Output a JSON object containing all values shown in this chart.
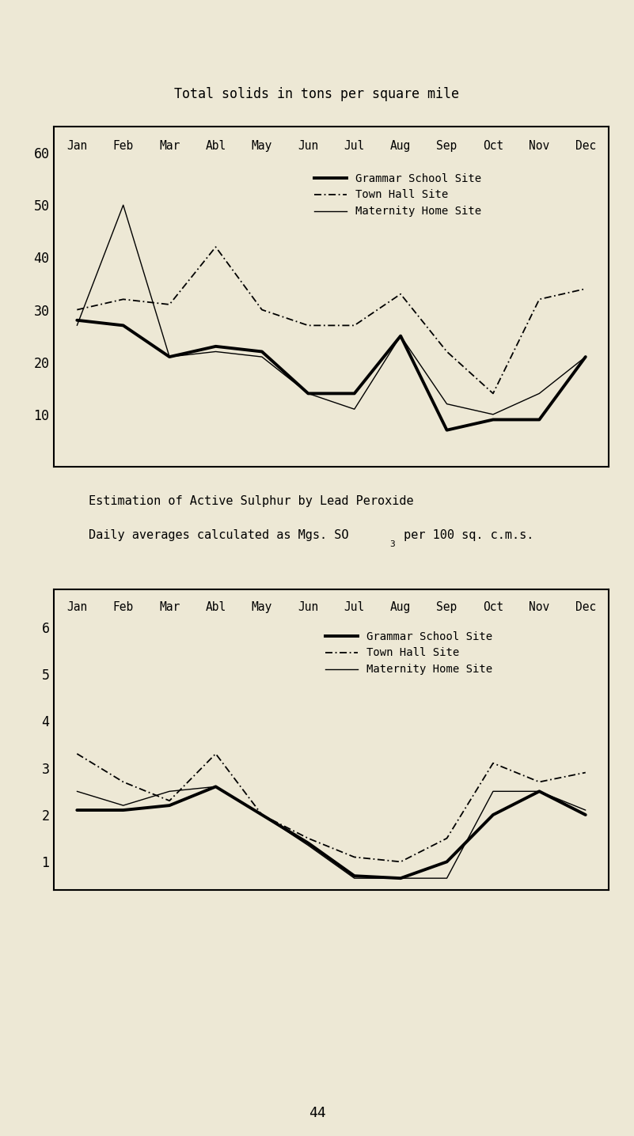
{
  "background_color": "#ede8d5",
  "title1": "Total solids in tons per square mile",
  "title2_line1": "Estimation of Active Sulphur by Lead Peroxide",
  "title2_line2_pre": "Daily averages calculated as Mgs. SO",
  "title2_line2_sub": "3",
  "title2_line2_post": " per 100 sq. c.m.s.",
  "months": [
    "Jan",
    "Feb",
    "Mar",
    "Abl",
    "May",
    "Jun",
    "Jul",
    "Aug",
    "Sep",
    "Oct",
    "Nov",
    "Dec"
  ],
  "legend_grammar": "Grammar School Site",
  "legend_town": "Town Hall Site",
  "legend_maternity": "Maternity Home Site",
  "chart1": {
    "grammar": [
      28,
      27,
      21,
      23,
      22,
      14,
      14,
      25,
      7,
      9,
      9,
      21
    ],
    "town": [
      30,
      32,
      31,
      42,
      30,
      27,
      27,
      33,
      22,
      14,
      32,
      34
    ],
    "maternity": [
      27,
      50,
      21,
      22,
      21,
      14,
      11,
      25,
      12,
      10,
      14,
      21
    ],
    "ylim": [
      0,
      65
    ],
    "yticks": [
      10,
      20,
      30,
      40,
      50,
      60
    ]
  },
  "chart2": {
    "grammar": [
      2.1,
      2.1,
      2.2,
      2.6,
      2.0,
      1.4,
      0.7,
      0.65,
      1.0,
      2.0,
      2.5,
      2.0
    ],
    "town": [
      3.3,
      2.7,
      2.3,
      3.3,
      2.0,
      1.5,
      1.1,
      1.0,
      1.5,
      3.1,
      2.7,
      2.9
    ],
    "maternity": [
      2.5,
      2.2,
      2.5,
      2.6,
      2.0,
      1.35,
      0.65,
      0.65,
      0.65,
      2.5,
      2.5,
      2.1
    ],
    "ylim": [
      0.4,
      6.8
    ],
    "yticks": [
      1,
      2,
      3,
      4,
      5,
      6
    ]
  },
  "page_number": "44"
}
